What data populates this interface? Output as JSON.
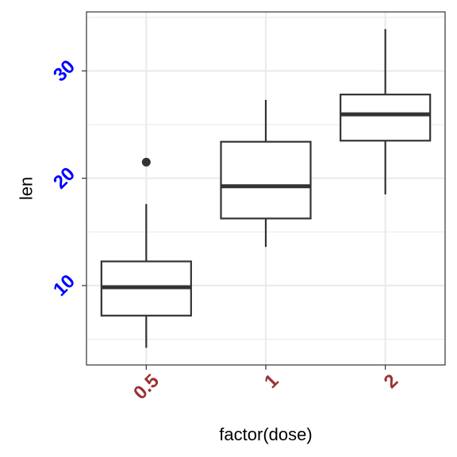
{
  "chart_data": {
    "type": "boxplot",
    "title": "",
    "xlabel": "factor(dose)",
    "ylabel": "len",
    "categories": [
      "0.5",
      "1",
      "2"
    ],
    "boxes": [
      {
        "category": "0.5",
        "whisker_low": 4.2,
        "q1": 7.2,
        "median": 9.85,
        "q3": 12.25,
        "whisker_high": 17.6,
        "outliers": [
          21.5
        ]
      },
      {
        "category": "1",
        "whisker_low": 13.6,
        "q1": 16.25,
        "median": 19.25,
        "q3": 23.4,
        "whisker_high": 27.3,
        "outliers": []
      },
      {
        "category": "2",
        "whisker_low": 18.5,
        "q1": 23.5,
        "median": 25.95,
        "q3": 27.8,
        "whisker_high": 33.9,
        "outliers": []
      }
    ],
    "yticks": [
      10,
      20,
      30
    ],
    "ytick_labels": [
      "10",
      "20",
      "30"
    ],
    "ylim": [
      2.6,
      35.5
    ],
    "grid": true,
    "colors": {
      "box_stroke": "#333333",
      "ytick_color": "#0000ff",
      "xtick_color": "#993333",
      "grid_major": "#ebebeb",
      "panel_border": "#333333"
    }
  }
}
